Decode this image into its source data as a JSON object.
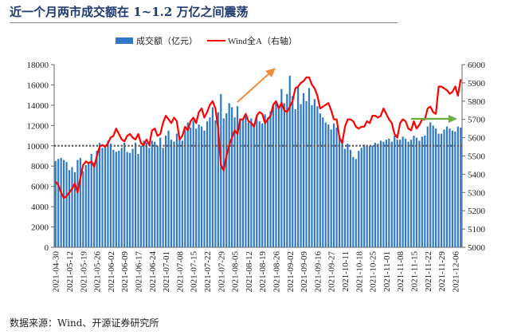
{
  "title": "近一个月两市成交额在 1~1.2 万亿之间震荡",
  "footer": "数据来源：Wind、开源证券研究所",
  "colors": {
    "bar": "#2E7AC6",
    "line": "#FF0000",
    "ref": "#555555",
    "up_arrow": "#F08A3C",
    "flat_arrow": "#6AAE3A"
  },
  "chart_data": {
    "type": "bar+line",
    "title": "近一个月两市成交额在 1~1.2 万亿之间震荡",
    "legend": {
      "position": "top-center",
      "entries": [
        "成交额（亿元）",
        "Wind全A（右轴）"
      ]
    },
    "x_tick_labels": [
      "2021-04-30",
      "2021-05-12",
      "2021-05-19",
      "2021-05-26",
      "2021-06-02",
      "2021-06-09",
      "2021-06-17",
      "2021-06-24",
      "2021-07-01",
      "2021-07-08",
      "2021-07-15",
      "2021-07-22",
      "2021-07-29",
      "2021-08-05",
      "2021-08-12",
      "2021-08-19",
      "2021-08-26",
      "2021-09-02",
      "2021-09-09",
      "2021-09-16",
      "2021-09-27",
      "2021-10-11",
      "2021-10-18",
      "2021-10-25",
      "2021-11-01",
      "2021-11-08",
      "2021-11-15",
      "2021-11-22",
      "2021-11-29",
      "2021-12-06"
    ],
    "x_tick_every": 5,
    "y_left": {
      "min": 0,
      "max": 18000,
      "step": 2000,
      "ticks": [
        "0",
        "2000",
        "4000",
        "6000",
        "8000",
        "10000",
        "12000",
        "14000",
        "16000",
        "18000"
      ]
    },
    "y_right": {
      "min": 5000,
      "max": 6000,
      "step": 100,
      "ticks": [
        "5000",
        "5100",
        "5200",
        "5300",
        "5400",
        "5500",
        "5600",
        "5700",
        "5800",
        "5900",
        "6000"
      ]
    },
    "reference_line": {
      "axis": "left",
      "value": 10000,
      "style": "dotted"
    },
    "series": [
      {
        "name": "成交额（亿元）",
        "type": "bar",
        "axis": "left",
        "values": [
          8500,
          8700,
          8800,
          8600,
          8400,
          7600,
          7900,
          7400,
          8600,
          8800,
          7500,
          8100,
          8400,
          9200,
          8300,
          9500,
          10300,
          9800,
          10000,
          10500,
          10200,
          9600,
          9400,
          9500,
          9800,
          10300,
          9400,
          9300,
          9700,
          10300,
          9200,
          10000,
          10500,
          10300,
          9800,
          10500,
          10400,
          10000,
          10800,
          9800,
          11000,
          11500,
          10600,
          10400,
          11200,
          10800,
          10500,
          11600,
          12300,
          11800,
          12500,
          11700,
          12100,
          11900,
          11500,
          12400,
          12800,
          13800,
          12500,
          13300,
          15100,
          12700,
          13200,
          14200,
          13800,
          12800,
          13900,
          12700,
          12600,
          12900,
          12300,
          12700,
          12200,
          12900,
          12400,
          12200,
          13100,
          12800,
          13400,
          13900,
          14300,
          13900,
          15600,
          14200,
          15100,
          16900,
          14900,
          13600,
          15800,
          14100,
          15200,
          14400,
          15700,
          14000,
          14600,
          13900,
          13200,
          12800,
          12300,
          12100,
          11600,
          12200,
          11800,
          11000,
          10600,
          9700,
          10200,
          9600,
          8900,
          8700,
          9500,
          9800,
          10100,
          10000,
          10000,
          10000,
          10300,
          10200,
          10500,
          10400,
          10600,
          10700,
          10400,
          11000,
          10600,
          10600,
          10900,
          10700,
          10400,
          10600,
          11000,
          10800,
          10500,
          10900,
          11000,
          11900,
          12300,
          12000,
          11700,
          11200,
          11200,
          11600,
          11900,
          11700,
          11500,
          11400,
          11900,
          11800
        ]
      },
      {
        "name": "Wind全A（右轴）",
        "type": "line",
        "axis": "right",
        "values": [
          5360,
          5340,
          5300,
          5270,
          5280,
          5300,
          5320,
          5350,
          5300,
          5380,
          5450,
          5470,
          5460,
          5470,
          5440,
          5500,
          5550,
          5560,
          5550,
          5570,
          5600,
          5610,
          5650,
          5620,
          5590,
          5580,
          5610,
          5620,
          5600,
          5590,
          5620,
          5570,
          5560,
          5590,
          5560,
          5640,
          5650,
          5610,
          5620,
          5680,
          5720,
          5700,
          5680,
          5710,
          5690,
          5590,
          5610,
          5660,
          5640,
          5690,
          5710,
          5680,
          5740,
          5760,
          5710,
          5740,
          5780,
          5800,
          5760,
          5650,
          5450,
          5420,
          5500,
          5560,
          5600,
          5640,
          5620,
          5700,
          5700,
          5730,
          5690,
          5680,
          5660,
          5720,
          5740,
          5730,
          5680,
          5700,
          5720,
          5780,
          5800,
          5760,
          5790,
          5750,
          5740,
          5770,
          5800,
          5870,
          5880,
          5900,
          5910,
          5930,
          5930,
          5890,
          5870,
          5830,
          5760,
          5770,
          5780,
          5790,
          5750,
          5700,
          5700,
          5600,
          5570,
          5660,
          5700,
          5700,
          5690,
          5660,
          5650,
          5660,
          5660,
          5690,
          5680,
          5720,
          5720,
          5710,
          5720,
          5760,
          5730,
          5700,
          5680,
          5620,
          5600,
          5680,
          5700,
          5690,
          5650,
          5640,
          5690,
          5650,
          5670,
          5700,
          5700,
          5760,
          5770,
          5740,
          5730,
          5880,
          5880,
          5870,
          5860,
          5840,
          5850,
          5880,
          5830,
          5920
        ]
      }
    ],
    "annotations": [
      {
        "type": "arrow",
        "direction": "up-right",
        "color": "orange",
        "near": "2021-08-05 to 2021-08-26"
      },
      {
        "type": "arrow",
        "direction": "right",
        "color": "green",
        "near": "2021-11-15 to 2021-12-06"
      }
    ]
  }
}
